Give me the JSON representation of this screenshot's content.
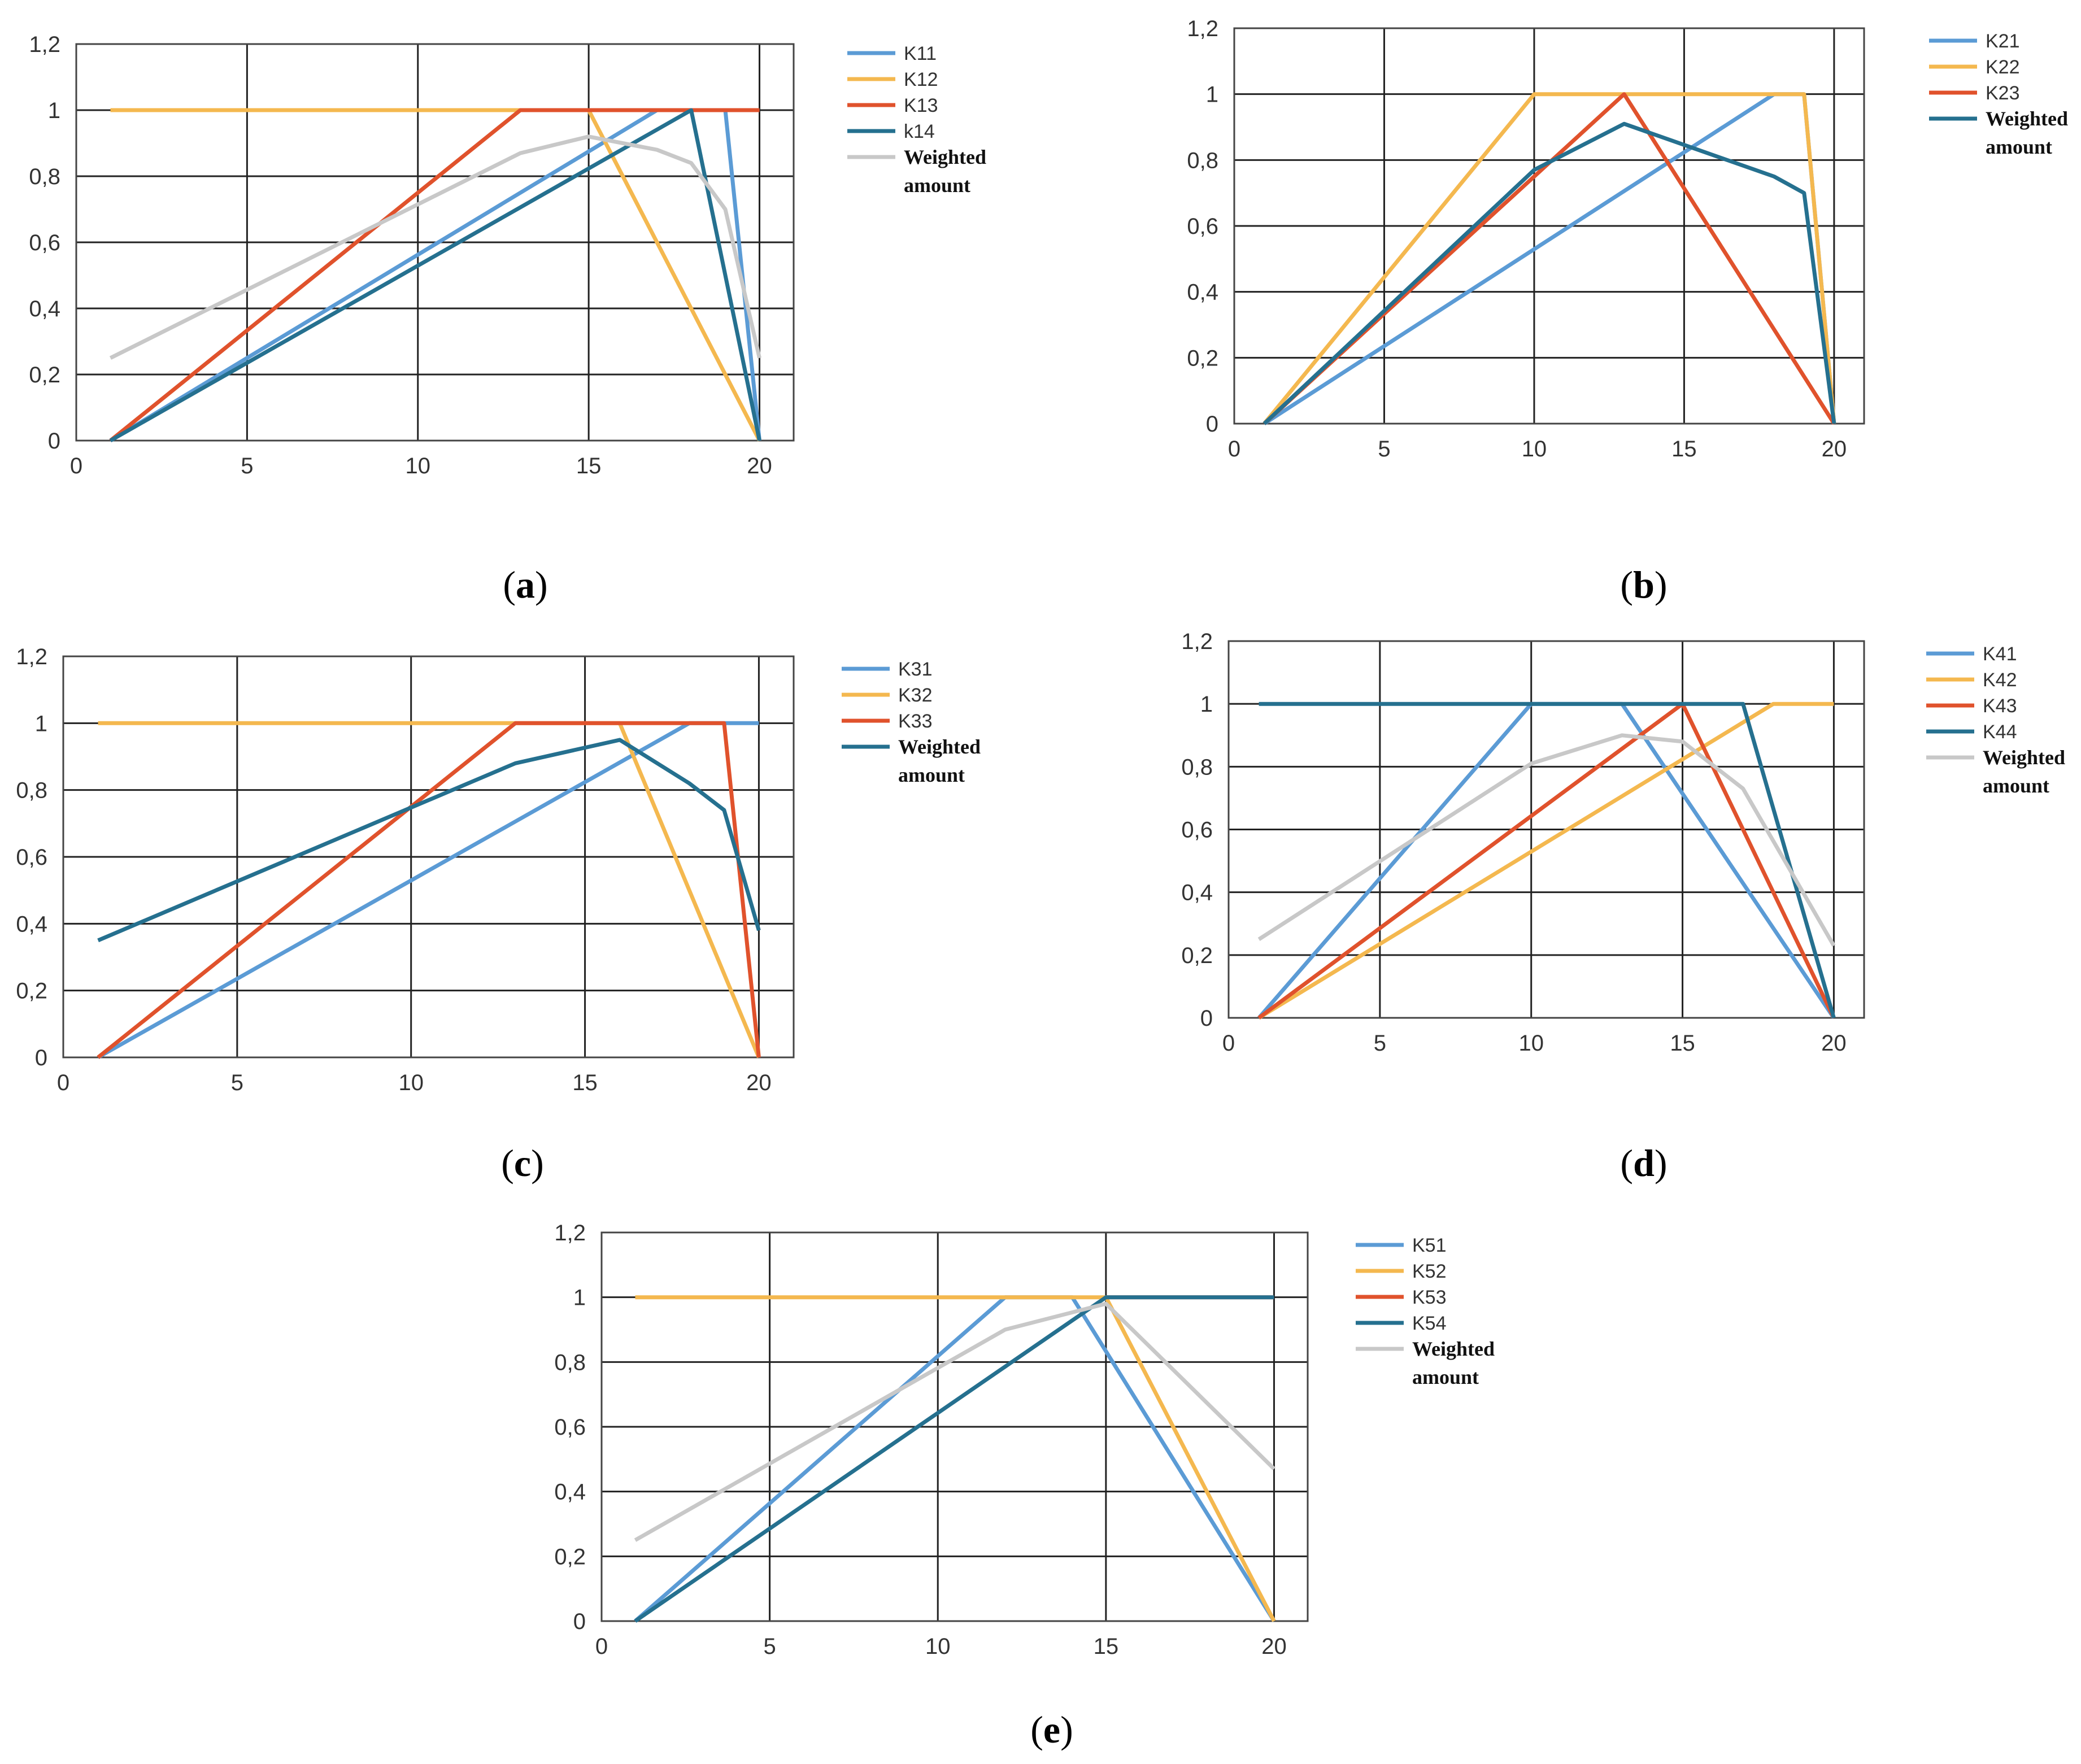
{
  "chart_data": [
    {
      "type": "line",
      "panel_label": "a",
      "xlim": [
        0,
        21
      ],
      "ylim": [
        0,
        1.2
      ],
      "x_ticks": [
        "0",
        "5",
        "10",
        "15",
        "20"
      ],
      "y_ticks": [
        "0",
        "0,2",
        "0,4",
        "0,6",
        "0,8",
        "1",
        "1,2"
      ],
      "grid": true,
      "legend_position": "right",
      "series": [
        {
          "name": "K11",
          "color": "#5b9bd5",
          "points": [
            [
              1,
              0
            ],
            [
              17,
              1
            ],
            [
              19,
              1
            ],
            [
              20,
              0
            ]
          ]
        },
        {
          "name": "K12",
          "color": "#f4b84f",
          "points": [
            [
              1,
              1
            ],
            [
              15,
              1
            ],
            [
              20,
              0
            ]
          ]
        },
        {
          "name": "K13",
          "color": "#e0522c",
          "points": [
            [
              1,
              0
            ],
            [
              13,
              1
            ],
            [
              20,
              1
            ]
          ]
        },
        {
          "name": "k14",
          "color": "#25708f",
          "points": [
            [
              1,
              0
            ],
            [
              18,
              1
            ],
            [
              20,
              0
            ]
          ]
        },
        {
          "name": "Weighted amount",
          "color": "#c8c8c8",
          "points": [
            [
              1,
              0.25
            ],
            [
              13,
              0.87
            ],
            [
              15,
              0.92
            ],
            [
              17,
              0.88
            ],
            [
              18,
              0.84
            ],
            [
              19,
              0.7
            ],
            [
              20,
              0.25
            ]
          ]
        }
      ]
    },
    {
      "type": "line",
      "panel_label": "b",
      "xlim": [
        0,
        21
      ],
      "ylim": [
        0,
        1.2
      ],
      "x_ticks": [
        "0",
        "5",
        "10",
        "15",
        "20"
      ],
      "y_ticks": [
        "0",
        "0,2",
        "0,4",
        "0,6",
        "0,8",
        "1",
        "1,2"
      ],
      "grid": true,
      "legend_position": "right",
      "series": [
        {
          "name": "K21",
          "color": "#5b9bd5",
          "points": [
            [
              1,
              0
            ],
            [
              18,
              1
            ],
            [
              19,
              1
            ],
            [
              20,
              0
            ]
          ]
        },
        {
          "name": "K22",
          "color": "#f4b84f",
          "points": [
            [
              1,
              0
            ],
            [
              10,
              1
            ],
            [
              19,
              1
            ],
            [
              20,
              0
            ]
          ]
        },
        {
          "name": "K23",
          "color": "#e0522c",
          "points": [
            [
              1,
              0
            ],
            [
              13,
              1
            ],
            [
              20,
              0
            ]
          ]
        },
        {
          "name": "Weighted amount",
          "color": "#25708f",
          "points": [
            [
              1,
              0
            ],
            [
              10,
              0.77
            ],
            [
              13,
              0.91
            ],
            [
              18,
              0.75
            ],
            [
              19,
              0.7
            ],
            [
              20,
              0
            ]
          ]
        }
      ]
    },
    {
      "type": "line",
      "panel_label": "c",
      "xlim": [
        0,
        21
      ],
      "ylim": [
        0,
        1.2
      ],
      "x_ticks": [
        "0",
        "5",
        "10",
        "15",
        "20"
      ],
      "y_ticks": [
        "0",
        "0,2",
        "0,4",
        "0,6",
        "0,8",
        "1",
        "1,2"
      ],
      "grid": true,
      "legend_position": "right",
      "series": [
        {
          "name": "K31",
          "color": "#5b9bd5",
          "points": [
            [
              1,
              0
            ],
            [
              18,
              1
            ],
            [
              20,
              1
            ]
          ]
        },
        {
          "name": "K32",
          "color": "#f4b84f",
          "points": [
            [
              1,
              1
            ],
            [
              16,
              1
            ],
            [
              20,
              0
            ]
          ]
        },
        {
          "name": "K33",
          "color": "#e0522c",
          "points": [
            [
              1,
              0
            ],
            [
              13,
              1
            ],
            [
              19,
              1
            ],
            [
              20,
              0
            ]
          ]
        },
        {
          "name": "Weighted amount",
          "color": "#25708f",
          "points": [
            [
              1,
              0.35
            ],
            [
              13,
              0.88
            ],
            [
              16,
              0.95
            ],
            [
              18,
              0.82
            ],
            [
              19,
              0.74
            ],
            [
              20,
              0.38
            ]
          ]
        }
      ]
    },
    {
      "type": "line",
      "panel_label": "d",
      "xlim": [
        0,
        21
      ],
      "ylim": [
        0,
        1.2
      ],
      "x_ticks": [
        "0",
        "5",
        "10",
        "15",
        "20"
      ],
      "y_ticks": [
        "0",
        "0,2",
        "0,4",
        "0,6",
        "0,8",
        "1",
        "1,2"
      ],
      "grid": true,
      "legend_position": "right",
      "series": [
        {
          "name": "K41",
          "color": "#5b9bd5",
          "points": [
            [
              1,
              0
            ],
            [
              10,
              1
            ],
            [
              13,
              1
            ],
            [
              20,
              0
            ]
          ]
        },
        {
          "name": "K42",
          "color": "#f4b84f",
          "points": [
            [
              1,
              0
            ],
            [
              18,
              1
            ],
            [
              20,
              1
            ]
          ]
        },
        {
          "name": "K43",
          "color": "#e0522c",
          "points": [
            [
              1,
              0
            ],
            [
              15,
              1
            ],
            [
              20,
              0
            ]
          ]
        },
        {
          "name": "K44",
          "color": "#25708f",
          "points": [
            [
              1,
              1
            ],
            [
              17,
              1
            ],
            [
              20,
              0
            ]
          ]
        },
        {
          "name": "Weighted amount",
          "color": "#c8c8c8",
          "points": [
            [
              1,
              0.25
            ],
            [
              10,
              0.81
            ],
            [
              13,
              0.9
            ],
            [
              15,
              0.88
            ],
            [
              17,
              0.73
            ],
            [
              20,
              0.23
            ]
          ]
        }
      ]
    },
    {
      "type": "line",
      "panel_label": "e",
      "xlim": [
        0,
        21
      ],
      "ylim": [
        0,
        1.2
      ],
      "x_ticks": [
        "0",
        "5",
        "10",
        "15",
        "20"
      ],
      "y_ticks": [
        "0",
        "0,2",
        "0,4",
        "0,6",
        "0,8",
        "1",
        "1,2"
      ],
      "grid": true,
      "legend_position": "right",
      "series": [
        {
          "name": "K51",
          "color": "#5b9bd5",
          "points": [
            [
              1,
              0
            ],
            [
              12,
              1
            ],
            [
              14,
              1
            ],
            [
              20,
              0
            ]
          ]
        },
        {
          "name": "K52",
          "color": "#f4b84f",
          "points": [
            [
              1,
              1
            ],
            [
              15,
              1
            ],
            [
              20,
              0
            ]
          ]
        },
        {
          "name": "K53",
          "color": "#e0522c",
          "points": [
            [
              15,
              1
            ],
            [
              20,
              1
            ]
          ]
        },
        {
          "name": "K54",
          "color": "#25708f",
          "points": [
            [
              1,
              0
            ],
            [
              15,
              1
            ],
            [
              20,
              1
            ]
          ]
        },
        {
          "name": "Weighted amount",
          "color": "#c8c8c8",
          "points": [
            [
              1,
              0.25
            ],
            [
              12,
              0.9
            ],
            [
              15,
              0.98
            ],
            [
              20,
              0.47
            ]
          ]
        }
      ]
    }
  ],
  "colors": {
    "grid": "#222222",
    "frame": "#444444",
    "background": "#ffffff"
  }
}
